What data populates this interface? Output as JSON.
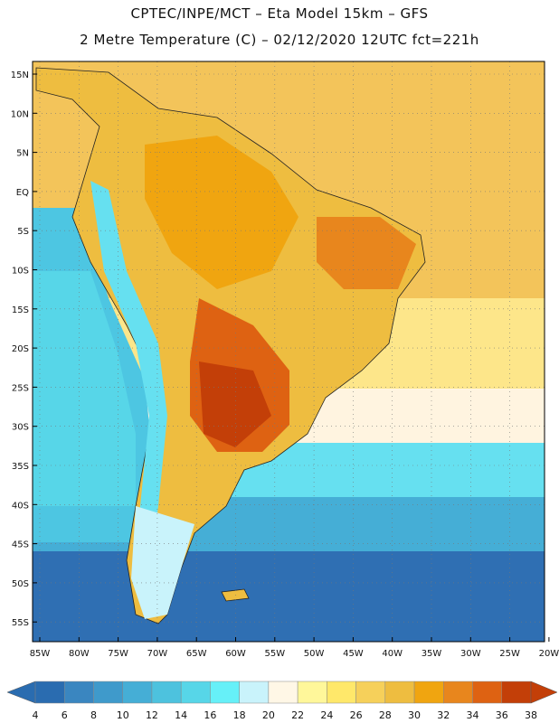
{
  "header": {
    "line1": "CPTEC/INPE/MCT –  Eta Model 15km – GFS",
    "line2": "2 Metre Temperature (C) – 02/12/2020 12UTC fct=221h"
  },
  "axes": {
    "lat_labels": [
      "15N",
      "10N",
      "5N",
      "EQ",
      "5S",
      "10S",
      "15S",
      "20S",
      "25S",
      "30S",
      "35S",
      "40S",
      "45S",
      "50S",
      "55S"
    ],
    "lon_labels": [
      "85W",
      "80W",
      "75W",
      "70W",
      "65W",
      "60W",
      "55W",
      "50W",
      "45W",
      "40W",
      "35W",
      "30W",
      "25W",
      "20W"
    ]
  },
  "colorbar": {
    "ticks": [
      "4",
      "6",
      "8",
      "10",
      "12",
      "14",
      "16",
      "18",
      "20",
      "22",
      "24",
      "26",
      "28",
      "30",
      "32",
      "34",
      "36",
      "38"
    ],
    "colors": [
      "#2a6cb0",
      "#3a86c0",
      "#3f9acb",
      "#45aed6",
      "#4dc2de",
      "#57d6e8",
      "#66f0f8",
      "#c9f3fb",
      "#fff7e6",
      "#fff79a",
      "#ffe86a",
      "#f6d05a",
      "#eebd40",
      "#f0a510",
      "#e8861d",
      "#de6212",
      "#c33f08"
    ],
    "low_color": "#2a6cb0",
    "high_color": "#c33f08"
  },
  "colors": {
    "ocean_deep": "#2a5fa5",
    "ocean_mid": "#3f8bc5",
    "ocean_light": "#4dc6e2",
    "land": "#eebd40",
    "hot": "#c33f08"
  }
}
